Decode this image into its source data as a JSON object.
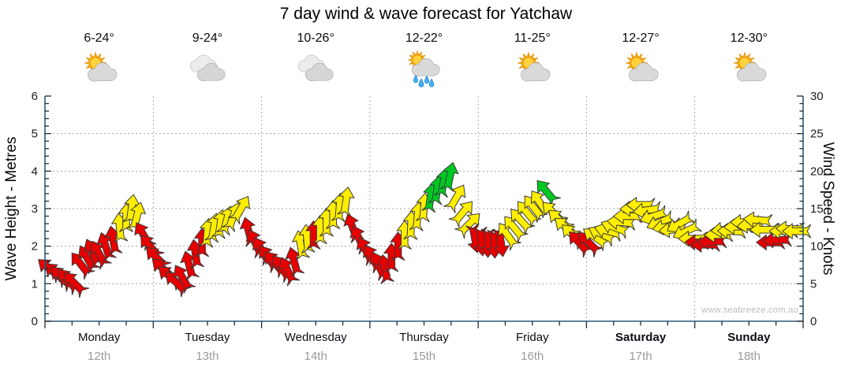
{
  "title": "7 day wind & wave forecast for Yatchaw",
  "watermark": "www.seabreeze.com.au",
  "left_axis": {
    "title": "Wave Height - Metres",
    "min": 0,
    "max": 6,
    "ticks": [
      "0",
      "1",
      "2",
      "3",
      "4",
      "5",
      "6"
    ]
  },
  "right_axis": {
    "title": "Wind Speed - Knots",
    "min": 0,
    "max": 30,
    "ticks": [
      "0",
      "5",
      "10",
      "15",
      "20",
      "25",
      "30"
    ]
  },
  "days": [
    {
      "name": "Monday",
      "date": "12th",
      "temp": "6-24°",
      "icon": "partly-cloudy",
      "bold": false
    },
    {
      "name": "Tuesday",
      "date": "13th",
      "temp": "9-24°",
      "icon": "cloudy",
      "bold": false
    },
    {
      "name": "Wednesday",
      "date": "14th",
      "temp": "10-26°",
      "icon": "cloudy",
      "bold": false
    },
    {
      "name": "Thursday",
      "date": "15th",
      "temp": "12-22°",
      "icon": "sun-showers",
      "bold": false
    },
    {
      "name": "Friday",
      "date": "16th",
      "temp": "11-25°",
      "icon": "partly-cloudy",
      "bold": false
    },
    {
      "name": "Saturday",
      "date": "17th",
      "temp": "12-27°",
      "icon": "partly-cloudy",
      "bold": true
    },
    {
      "name": "Sunday",
      "date": "18th",
      "temp": "12-30°",
      "icon": "partly-cloudy",
      "bold": true
    }
  ],
  "colors": {
    "arrow_red": "#e60000",
    "arrow_yellow": "#ffee00",
    "arrow_green": "#00c822",
    "arrow_outline": "#3c3c3c",
    "axis_line": "#305a78",
    "tick": "#2a2a2a",
    "grid": "#a8a8a8",
    "day_label": "#0c0c16",
    "date_label": "#9a9a9a"
  },
  "chart_data": {
    "type": "scatter",
    "subtype": "wind-direction-arrows",
    "title": "7 day wind & wave forecast for Yatchaw",
    "xlabel": "days (Monday 12th - Sunday 18th)",
    "ylabel_left": "Wave Height - Metres",
    "ylabel_right": "Wind Speed - Knots",
    "xlim_days": [
      0,
      7
    ],
    "ylim_knots": [
      0,
      30
    ],
    "ylim_metres": [
      0,
      6
    ],
    "grid": "dotted, horizontal every 5 knots (1 m), vertical at each day boundary",
    "legend": "arrow colour = wind strength: red < ~10 kt, yellow ~10-16 kt, green ~17-20 kt; arrow rotation = wind direction; 0° = up",
    "fields": [
      "day_x",
      "knots",
      "dir_deg",
      "color"
    ],
    "arrows": [
      [
        0.04,
        7.0,
        -50,
        "r"
      ],
      [
        0.1,
        6.4,
        -48,
        "r"
      ],
      [
        0.15,
        5.9,
        -45,
        "r"
      ],
      [
        0.21,
        5.5,
        -42,
        "r"
      ],
      [
        0.27,
        5.1,
        -45,
        "r"
      ],
      [
        0.33,
        7.6,
        -38,
        "r"
      ],
      [
        0.39,
        8.4,
        -30,
        "r"
      ],
      [
        0.44,
        9.2,
        -25,
        "r"
      ],
      [
        0.5,
        9.0,
        -28,
        "r"
      ],
      [
        0.56,
        10.0,
        -18,
        "r"
      ],
      [
        0.63,
        10.8,
        -10,
        "r"
      ],
      [
        0.69,
        12.5,
        -5,
        "y"
      ],
      [
        0.75,
        13.8,
        0,
        "y"
      ],
      [
        0.8,
        15.0,
        8,
        "y"
      ],
      [
        0.85,
        14.0,
        15,
        "y"
      ],
      [
        0.91,
        11.5,
        -30,
        "r"
      ],
      [
        0.97,
        10.0,
        -40,
        "r"
      ],
      [
        1.03,
        8.5,
        -45,
        "r"
      ],
      [
        1.09,
        7.0,
        -48,
        "r"
      ],
      [
        1.15,
        6.0,
        -50,
        "r"
      ],
      [
        1.21,
        5.2,
        -45,
        "r"
      ],
      [
        1.27,
        5.8,
        -30,
        "r"
      ],
      [
        1.33,
        7.5,
        -15,
        "r"
      ],
      [
        1.39,
        9.0,
        -8,
        "r"
      ],
      [
        1.45,
        10.5,
        0,
        "r"
      ],
      [
        1.5,
        11.8,
        5,
        "y"
      ],
      [
        1.56,
        12.5,
        10,
        "y"
      ],
      [
        1.62,
        13.0,
        8,
        "y"
      ],
      [
        1.68,
        13.5,
        15,
        "y"
      ],
      [
        1.74,
        14.0,
        20,
        "y"
      ],
      [
        1.81,
        15.0,
        30,
        "y"
      ],
      [
        1.88,
        12.0,
        -15,
        "r"
      ],
      [
        1.94,
        10.5,
        -25,
        "r"
      ],
      [
        2.0,
        9.5,
        -30,
        "r"
      ],
      [
        2.06,
        8.5,
        -35,
        "r"
      ],
      [
        2.12,
        7.8,
        -40,
        "r"
      ],
      [
        2.18,
        7.2,
        -35,
        "r"
      ],
      [
        2.24,
        6.8,
        -25,
        "r"
      ],
      [
        2.3,
        8.0,
        -15,
        "r"
      ],
      [
        2.36,
        10.2,
        -10,
        "y"
      ],
      [
        2.42,
        11.0,
        -5,
        "y"
      ],
      [
        2.48,
        11.5,
        0,
        "r"
      ],
      [
        2.54,
        12.2,
        0,
        "y"
      ],
      [
        2.6,
        13.2,
        0,
        "y"
      ],
      [
        2.66,
        14.2,
        0,
        "y"
      ],
      [
        2.72,
        15.2,
        5,
        "y"
      ],
      [
        2.78,
        16.0,
        8,
        "y"
      ],
      [
        2.84,
        12.5,
        -20,
        "r"
      ],
      [
        2.9,
        11.0,
        -25,
        "r"
      ],
      [
        2.96,
        9.5,
        -28,
        "r"
      ],
      [
        3.02,
        8.5,
        -30,
        "r"
      ],
      [
        3.08,
        7.5,
        -25,
        "r"
      ],
      [
        3.14,
        7.0,
        -10,
        "r"
      ],
      [
        3.2,
        8.5,
        0,
        "r"
      ],
      [
        3.26,
        10.0,
        0,
        "r"
      ],
      [
        3.32,
        11.5,
        0,
        "y"
      ],
      [
        3.38,
        12.8,
        2,
        "y"
      ],
      [
        3.44,
        14.0,
        5,
        "y"
      ],
      [
        3.5,
        15.2,
        5,
        "y"
      ],
      [
        3.56,
        16.5,
        8,
        "g"
      ],
      [
        3.62,
        17.5,
        8,
        "g"
      ],
      [
        3.68,
        18.5,
        10,
        "g"
      ],
      [
        3.74,
        19.3,
        12,
        "g"
      ],
      [
        3.8,
        16.5,
        30,
        "y"
      ],
      [
        3.86,
        14.5,
        40,
        "y"
      ],
      [
        3.92,
        13.0,
        45,
        "y"
      ],
      [
        3.97,
        11.0,
        170,
        "r"
      ],
      [
        4.03,
        10.6,
        175,
        "r"
      ],
      [
        4.09,
        10.4,
        180,
        "r"
      ],
      [
        4.15,
        10.3,
        178,
        "r"
      ],
      [
        4.21,
        10.5,
        172,
        "r"
      ],
      [
        4.27,
        11.5,
        -35,
        "y"
      ],
      [
        4.33,
        12.5,
        -40,
        "y"
      ],
      [
        4.39,
        13.5,
        -42,
        "y"
      ],
      [
        4.45,
        14.5,
        -40,
        "y"
      ],
      [
        4.51,
        15.2,
        -38,
        "y"
      ],
      [
        4.57,
        15.8,
        -35,
        "y"
      ],
      [
        4.63,
        17.3,
        -40,
        "g"
      ],
      [
        4.69,
        14.5,
        -45,
        "y"
      ],
      [
        4.75,
        13.5,
        -48,
        "y"
      ],
      [
        4.81,
        12.5,
        -50,
        "y"
      ],
      [
        4.87,
        11.5,
        -45,
        "y"
      ],
      [
        4.93,
        10.5,
        -42,
        "r"
      ],
      [
        5.02,
        10.5,
        -45,
        "r"
      ],
      [
        5.08,
        11.2,
        -55,
        "y"
      ],
      [
        5.14,
        11.6,
        -65,
        "y"
      ],
      [
        5.2,
        12.0,
        -75,
        "y"
      ],
      [
        5.26,
        12.5,
        -70,
        "y"
      ],
      [
        5.32,
        13.2,
        -85,
        "y"
      ],
      [
        5.38,
        14.0,
        -90,
        "y"
      ],
      [
        5.44,
        15.0,
        -92,
        "y"
      ],
      [
        5.5,
        15.5,
        -90,
        "y"
      ],
      [
        5.56,
        14.8,
        -98,
        "y"
      ],
      [
        5.62,
        14.0,
        -108,
        "y"
      ],
      [
        5.68,
        13.2,
        -112,
        "y"
      ],
      [
        5.74,
        12.6,
        -100,
        "y"
      ],
      [
        5.8,
        12.2,
        -95,
        "y"
      ],
      [
        5.86,
        13.0,
        -120,
        "y"
      ],
      [
        5.92,
        12.0,
        -115,
        "y"
      ],
      [
        5.98,
        11.0,
        -90,
        "y"
      ],
      [
        6.04,
        10.5,
        -88,
        "r"
      ],
      [
        6.1,
        10.2,
        -90,
        "r"
      ],
      [
        6.16,
        10.6,
        -92,
        "r"
      ],
      [
        6.22,
        11.5,
        -90,
        "y"
      ],
      [
        6.28,
        12.2,
        -95,
        "y"
      ],
      [
        6.34,
        12.0,
        -88,
        "y"
      ],
      [
        6.4,
        12.6,
        -92,
        "y"
      ],
      [
        6.46,
        13.2,
        -90,
        "y"
      ],
      [
        6.52,
        12.8,
        -95,
        "y"
      ],
      [
        6.58,
        13.5,
        -85,
        "y"
      ],
      [
        6.64,
        12.2,
        -90,
        "y"
      ],
      [
        6.7,
        10.5,
        -90,
        "r"
      ],
      [
        6.76,
        10.8,
        -92,
        "r"
      ],
      [
        6.82,
        12.0,
        -90,
        "y"
      ],
      [
        6.88,
        12.3,
        -88,
        "y"
      ],
      [
        6.94,
        12.0,
        -90,
        "y"
      ]
    ]
  }
}
